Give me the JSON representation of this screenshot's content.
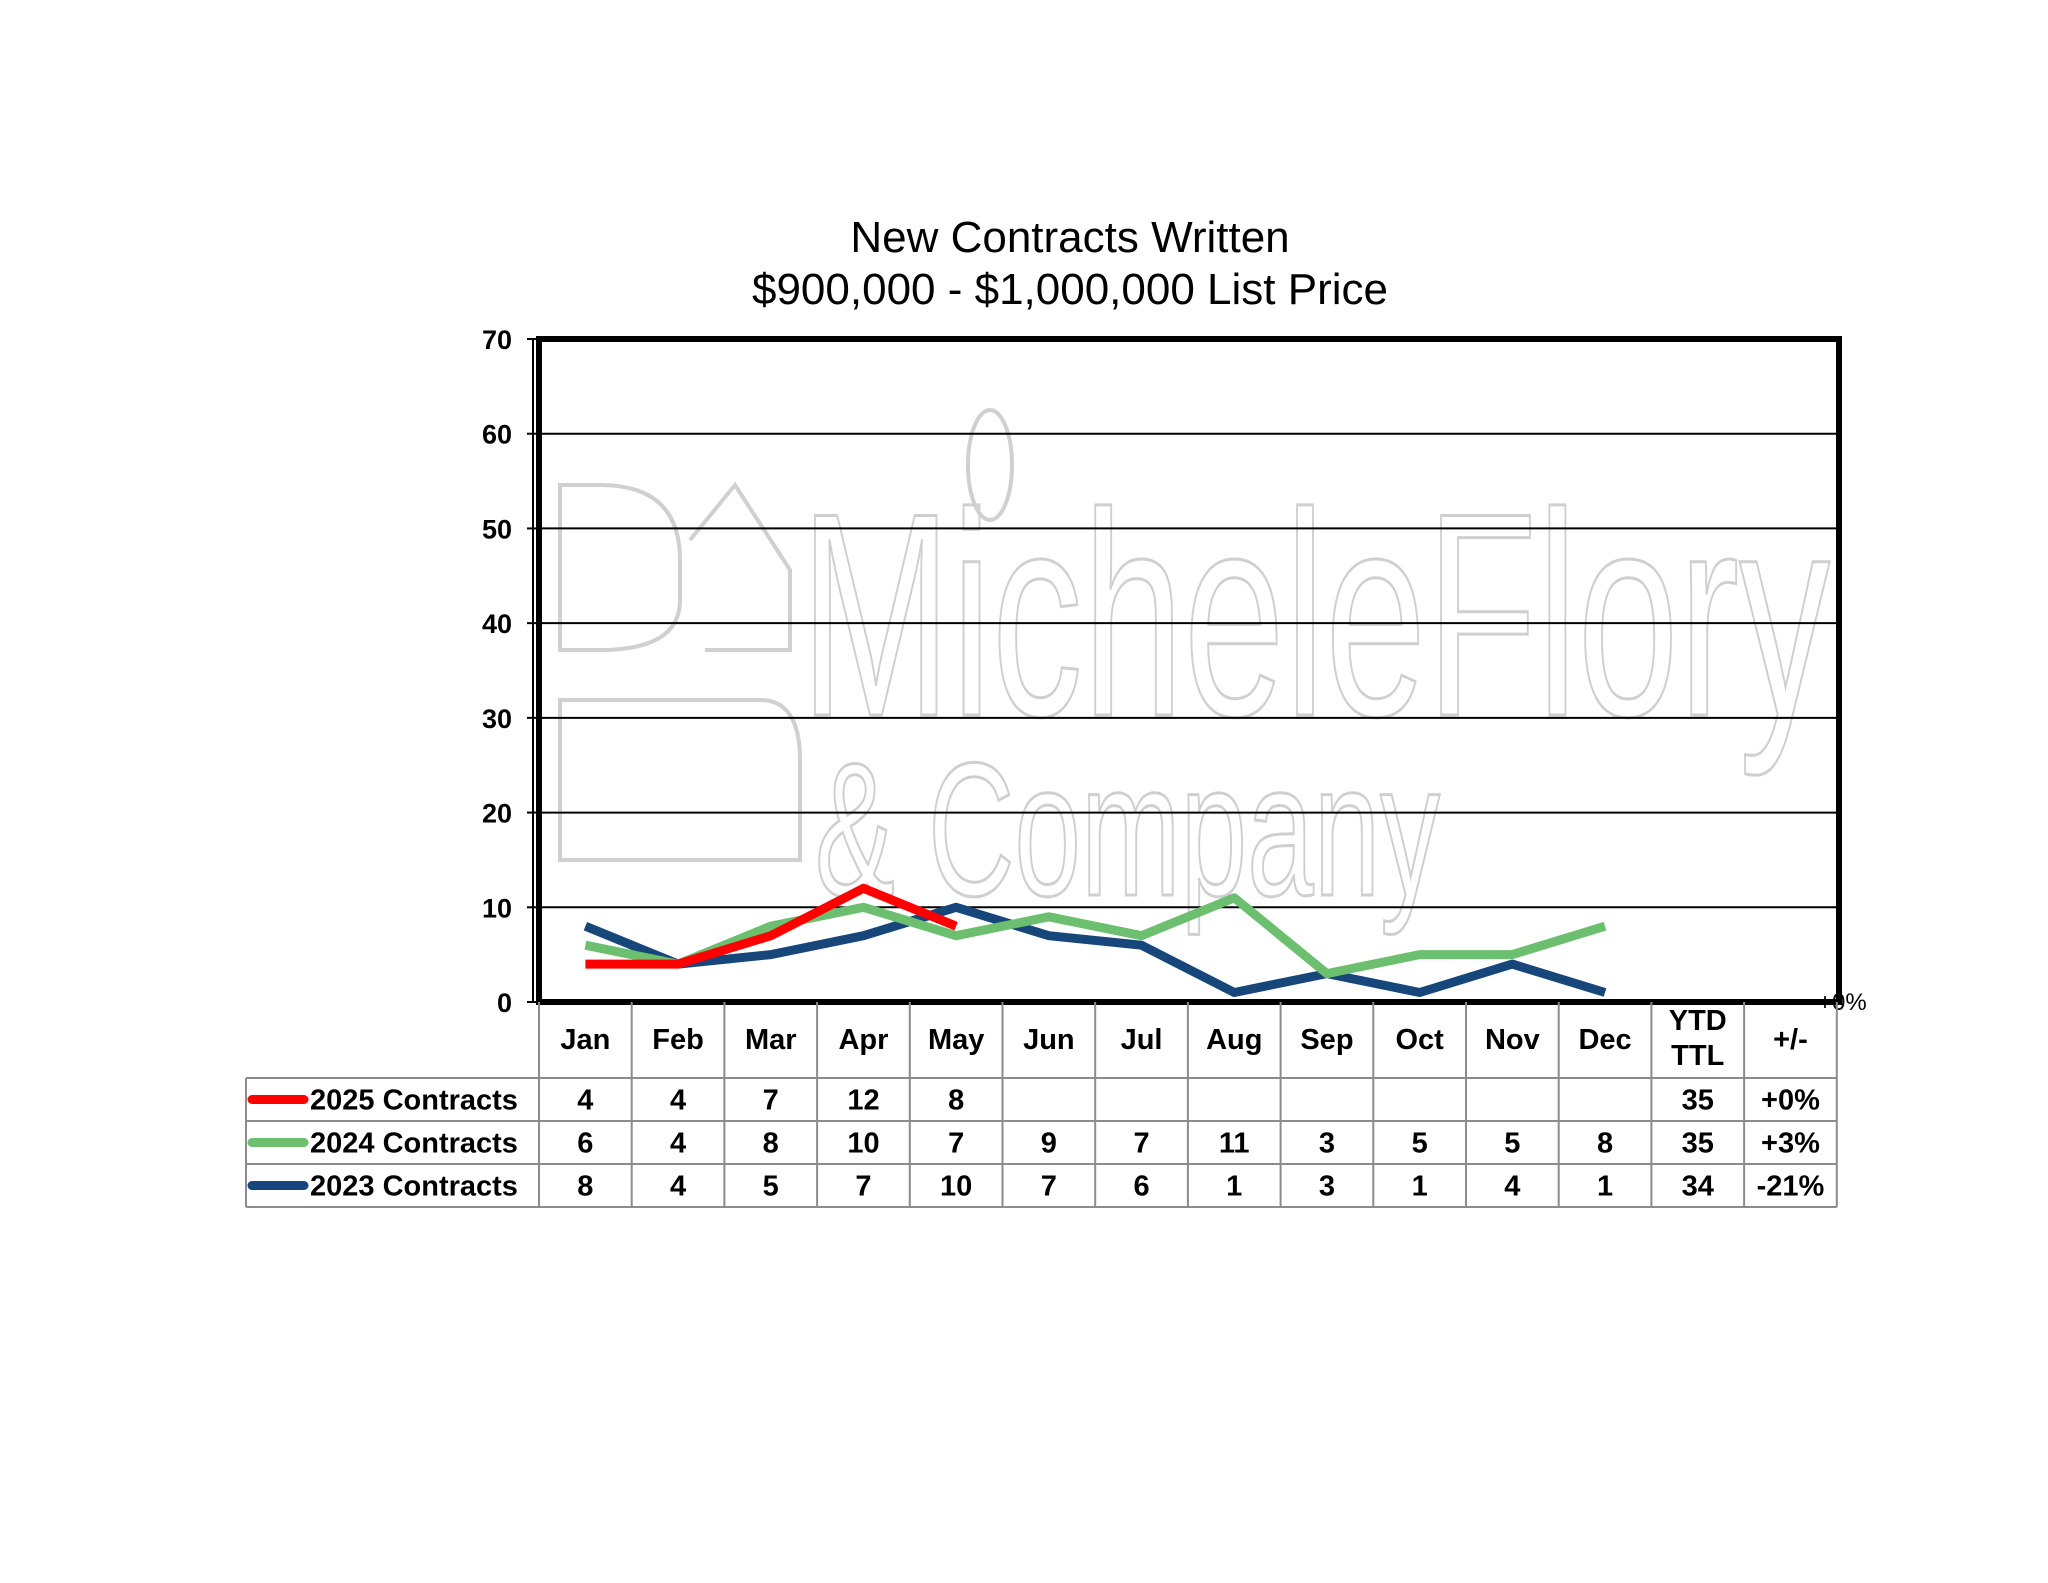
{
  "chart_data": {
    "type": "line",
    "title": "New Contracts Written",
    "subtitle": "$900,000 - $1,000,000 List Price",
    "categories": [
      "Jan",
      "Feb",
      "Mar",
      "Apr",
      "May",
      "Jun",
      "Jul",
      "Aug",
      "Sep",
      "Oct",
      "Nov",
      "Dec"
    ],
    "extra_columns": [
      "YTD TTL",
      "+/-"
    ],
    "ylim": [
      0,
      70
    ],
    "yticks": [
      0,
      10,
      20,
      30,
      40,
      50,
      60,
      70
    ],
    "grid": true,
    "legend": "data-table-left",
    "stray_label": "+0%",
    "series": [
      {
        "name": "2025 Contracts",
        "color": "#ff0000",
        "values": [
          4,
          4,
          7,
          12,
          8,
          null,
          null,
          null,
          null,
          null,
          null,
          null
        ],
        "ytd": "35",
        "change": "+0%"
      },
      {
        "name": "2024 Contracts",
        "color": "#6cbf6e",
        "values": [
          6,
          4,
          8,
          10,
          7,
          9,
          7,
          11,
          3,
          5,
          5,
          8
        ],
        "ytd": "35",
        "change": "+3%"
      },
      {
        "name": "2023 Contracts",
        "color": "#17467a",
        "values": [
          8,
          4,
          5,
          7,
          10,
          7,
          6,
          1,
          3,
          1,
          4,
          1
        ],
        "ytd": "34",
        "change": "-21%"
      }
    ]
  },
  "watermark": {
    "line1": "MicheleFlory",
    "line2": "& Company"
  }
}
